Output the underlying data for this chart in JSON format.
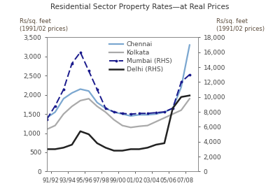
{
  "title": "Residential Sector Property Rates—at Real Prices",
  "ylabel_left_line1": "Rs/sq. feet",
  "ylabel_left_line2": "(1991/02 prices)",
  "ylabel_right_line1": "Rs/sq. feet",
  "ylabel_right_line2": "(1991/02 prices)",
  "x_labels": [
    "91/92",
    "93/94",
    "95/96",
    "97/98",
    "99/00",
    "01/02",
    "03/04",
    "05/06",
    "07/08"
  ],
  "x_tick_positions": [
    1991.5,
    1993.5,
    1995.5,
    1997.5,
    1999.5,
    2001.5,
    2003.5,
    2005.5,
    2007.5
  ],
  "x_values": [
    1991,
    1992,
    1993,
    1994,
    1995,
    1996,
    1997,
    1998,
    1999,
    2000,
    2001,
    2002,
    2003,
    2004,
    2005,
    2006,
    2007,
    2008
  ],
  "chennai": [
    1400,
    1550,
    1900,
    2050,
    2150,
    2100,
    1800,
    1650,
    1550,
    1500,
    1450,
    1480,
    1480,
    1500,
    1550,
    1650,
    2200,
    3300
  ],
  "kolkata": [
    1100,
    1200,
    1500,
    1700,
    1850,
    1900,
    1700,
    1550,
    1350,
    1200,
    1150,
    1180,
    1200,
    1300,
    1400,
    1500,
    1600,
    1900
  ],
  "mumbai_rhs": [
    7000,
    8800,
    11000,
    14500,
    16000,
    13500,
    11000,
    8500,
    8000,
    7800,
    7700,
    7800,
    7800,
    7900,
    8000,
    8500,
    12000,
    13000
  ],
  "delhi_rhs": [
    3000,
    3000,
    3200,
    3600,
    5400,
    5000,
    3800,
    3200,
    2800,
    2800,
    3000,
    3000,
    3200,
    3600,
    3800,
    8500,
    10000,
    10200
  ],
  "ylim_left": [
    0,
    3500
  ],
  "ylim_right": [
    0,
    18000
  ],
  "yticks_left": [
    0,
    500,
    1000,
    1500,
    2000,
    2500,
    3000,
    3500
  ],
  "yticks_right": [
    0,
    2000,
    4000,
    6000,
    8000,
    10000,
    12000,
    14000,
    16000,
    18000
  ],
  "color_chennai": "#7ba7d0",
  "color_kolkata": "#aaaaaa",
  "color_mumbai": "#1a1a8c",
  "color_delhi": "#222222",
  "legend_labels": [
    "Chennai",
    "Kolkata",
    "Mumbai (RHS)",
    "Delhi (RHS)"
  ],
  "background_color": "#ffffff",
  "label_color": "#5a4a3a",
  "title_color": "#333333",
  "xlim": [
    1991,
    2009
  ]
}
